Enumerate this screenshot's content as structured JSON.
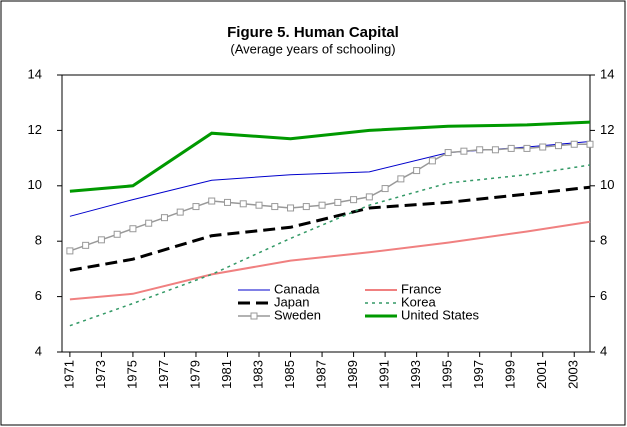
{
  "chart_data": {
    "type": "line",
    "title": "Figure 5. Human Capital",
    "subtitle": "(Average years of schooling)",
    "xlim": [
      1970.5,
      2004
    ],
    "xticks": [
      1971,
      1973,
      1975,
      1977,
      1979,
      1981,
      1983,
      1985,
      1987,
      1989,
      1991,
      1993,
      1995,
      1997,
      1999,
      2001,
      2003
    ],
    "ylim": [
      4,
      14
    ],
    "yticks": [
      4,
      6,
      8,
      10,
      12,
      14
    ],
    "y2lim": [
      4,
      14
    ],
    "y2ticks": [
      4,
      6,
      8,
      10,
      12,
      14
    ],
    "series": [
      {
        "name": "Canada",
        "color": "#0000cc",
        "x": [
          1971,
          1975,
          1980,
          1985,
          1990,
          1995,
          2000,
          2004
        ],
        "values": [
          8.9,
          9.5,
          10.2,
          10.4,
          10.5,
          11.2,
          11.4,
          11.6
        ]
      },
      {
        "name": "France",
        "color": "#f08080",
        "x": [
          1971,
          1975,
          1980,
          1985,
          1990,
          1995,
          2000,
          2004
        ],
        "values": [
          5.9,
          6.1,
          6.8,
          7.3,
          7.6,
          7.95,
          8.35,
          8.7
        ]
      },
      {
        "name": "Japan",
        "color": "#000000",
        "x": [
          1971,
          1975,
          1980,
          1985,
          1990,
          1995,
          2000,
          2004
        ],
        "values": [
          6.95,
          7.35,
          8.2,
          8.5,
          9.2,
          9.4,
          9.7,
          9.95
        ]
      },
      {
        "name": "Korea",
        "color": "#339966",
        "x": [
          1971,
          1975,
          1980,
          1985,
          1990,
          1995,
          2000,
          2004
        ],
        "values": [
          4.95,
          5.75,
          6.8,
          8.1,
          9.3,
          10.1,
          10.4,
          10.75
        ]
      },
      {
        "name": "Sweden",
        "color": "#999999",
        "x": [
          1971,
          1972,
          1973,
          1974,
          1975,
          1976,
          1977,
          1978,
          1979,
          1980,
          1981,
          1982,
          1983,
          1984,
          1985,
          1986,
          1987,
          1988,
          1989,
          1990,
          1991,
          1992,
          1993,
          1994,
          1995,
          1996,
          1997,
          1998,
          1999,
          2000,
          2001,
          2002,
          2003,
          2004
        ],
        "values": [
          7.65,
          7.85,
          8.05,
          8.25,
          8.45,
          8.65,
          8.85,
          9.05,
          9.25,
          9.45,
          9.4,
          9.35,
          9.3,
          9.25,
          9.2,
          9.25,
          9.3,
          9.4,
          9.5,
          9.6,
          9.9,
          10.25,
          10.55,
          10.9,
          11.2,
          11.25,
          11.3,
          11.3,
          11.35,
          11.35,
          11.4,
          11.45,
          11.5,
          11.5
        ]
      },
      {
        "name": "United States",
        "color": "#009900",
        "x": [
          1971,
          1975,
          1980,
          1985,
          1990,
          1995,
          2000,
          2004
        ],
        "values": [
          9.8,
          10.0,
          11.9,
          11.7,
          12.0,
          12.15,
          12.2,
          12.3
        ]
      }
    ]
  }
}
